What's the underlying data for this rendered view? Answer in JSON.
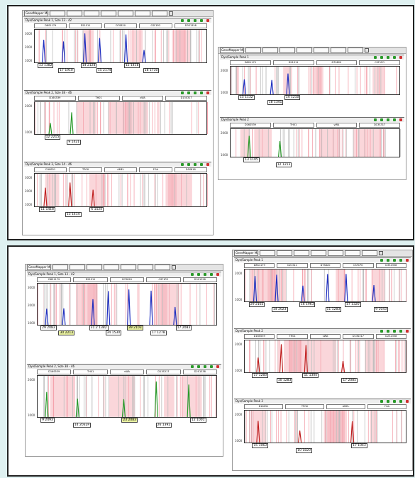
{
  "colors": {
    "background": "#dff1f1",
    "pink": "#f4a3ad",
    "gray_bin": "#bdbdbd",
    "blue": "#2030c0",
    "green": "#2a9a2a",
    "red": "#c02020",
    "dot_green": "#2a9a2a",
    "dot_red": "#d03030"
  },
  "panels": [
    {
      "name": "top-left-window",
      "title": "GeneMapper Marker Panel",
      "sections": [
        {
          "title": "Dye/Sample Peak 1, Size 13 - 42",
          "markers": [
            "D8S1179",
            "D21S11",
            "D7S820",
            "CSF1PO",
            "D3S1358"
          ],
          "ylabels": [
            "3000",
            "2000",
            "1000"
          ],
          "peak_color": "blue",
          "labels": [
            {
              "t": "13 1382",
              "p": 0.02
            },
            {
              "t": "17 1910",
              "p": 0.14
            },
            {
              "t": "14 2128",
              "p": 0.27
            },
            {
              "t": "15 2174",
              "p": 0.36
            },
            {
              "t": "12 1418",
              "p": 0.52
            },
            {
              "t": "18 1730",
              "p": 0.63
            }
          ]
        },
        {
          "title": "Dye/Sample Peak 2, Size 38 - 46",
          "markers": [
            "D16S539",
            "TH01",
            "vWA",
            "D13S317"
          ],
          "ylabels": [
            "2000",
            "1000"
          ],
          "peak_color": "green",
          "labels": [
            {
              "t": "12 2215",
              "p": 0.06
            },
            {
              "t": "9 1421",
              "p": 0.19
            }
          ]
        },
        {
          "title": "Dye/Sample Peak 3, Size 14 - 46",
          "markers": [
            "D18S51",
            "TPOX",
            "AMEL",
            "FGA",
            "D5S818"
          ],
          "ylabels": [
            "3000",
            "2000",
            "1000"
          ],
          "peak_color": "red",
          "labels": [
            {
              "t": "11 1418",
              "p": 0.03
            },
            {
              "t": "13 1414",
              "p": 0.18
            },
            {
              "t": "X 1524",
              "p": 0.32
            }
          ]
        }
      ]
    },
    {
      "name": "top-right-window",
      "title": "GeneMapper Marker Panel",
      "sections": [
        {
          "title": "Dye/Sample Peak 1",
          "markers": [
            "D8S1179",
            "D21S11",
            "D7S820",
            "CSF1PO"
          ],
          "ylabels": [
            "2000",
            "1000"
          ],
          "peak_color": "blue",
          "labels": [
            {
              "t": "15 1132",
              "p": 0.05
            },
            {
              "t": "18 1341",
              "p": 0.22
            },
            {
              "t": "14 1210",
              "p": 0.32
            }
          ]
        },
        {
          "title": "Dye/Sample Peak 2",
          "markers": [
            "D16S539",
            "TH01",
            "vWA",
            "D13S317"
          ],
          "ylabels": [
            "2000",
            "1000"
          ],
          "peak_color": "green",
          "labels": [
            {
              "t": "13 1105",
              "p": 0.08
            },
            {
              "t": "12 1213",
              "p": 0.27
            }
          ]
        }
      ]
    },
    {
      "name": "bottom-left-window",
      "title": "GeneMapper Marker Panel",
      "sections": [
        {
          "title": "Dye/Sample Peak 1, Size 13 - 42",
          "markers": [
            "D8S1179",
            "D21S11",
            "D7S820",
            "CSF1PO",
            "D3S1358"
          ],
          "ylabels": [
            "3000",
            "2000",
            "1000"
          ],
          "peak_color": "blue",
          "labels": [
            {
              "t": "29 2083",
              "p": 0.02
            },
            {
              "t": "30 2213",
              "y": 1,
              "p": 0.12
            },
            {
              "t": "31.2 1382",
              "p": 0.29
            },
            {
              "t": "34 1530",
              "p": 0.38
            },
            {
              "t": "39 2103",
              "y": 1,
              "p": 0.5
            },
            {
              "t": "17 1278",
              "p": 0.63
            },
            {
              "t": "17 2083",
              "p": 0.77
            }
          ]
        },
        {
          "title": "Dye/Sample Peak 2, Size 38 - 46",
          "markers": [
            "D16S539",
            "TH01",
            "vWA",
            "D13S317",
            "D2S1338"
          ],
          "ylabels": [
            "2000",
            "1000"
          ],
          "peak_color": "green",
          "labels": [
            {
              "t": "9 2493",
              "p": 0.02
            },
            {
              "t": "14 2032P",
              "p": 0.2
            },
            {
              "t": "23 2083",
              "y": 1,
              "p": 0.47
            },
            {
              "t": "26 1392",
              "p": 0.66
            },
            {
              "t": "12 1001",
              "p": 0.85
            }
          ]
        }
      ]
    },
    {
      "name": "bottom-right-window",
      "title": "GeneMapper Marker Panel",
      "sections": [
        {
          "title": "Dye/Sample Peak 1",
          "markers": [
            "D8S1179",
            "D21S11",
            "D7S820",
            "CSF1PO",
            "D3S1358"
          ],
          "ylabels": [
            "2000",
            "1000"
          ],
          "peak_color": "blue",
          "labels": [
            {
              "t": "29 2163",
              "p": 0.03
            },
            {
              "t": "14 2023",
              "p": 0.17
            },
            {
              "t": "16 1963",
              "p": 0.34
            },
            {
              "t": "11 1283",
              "p": 0.5
            },
            {
              "t": "17 1320",
              "p": 0.62
            },
            {
              "t": "9 1043",
              "p": 0.8
            }
          ]
        },
        {
          "title": "Dye/Sample Peak 2",
          "markers": [
            "D16S539",
            "TH01",
            "vWA",
            "D13S317",
            "D2S1338"
          ],
          "ylabels": [
            "2000",
            "1000"
          ],
          "peak_color": "red",
          "labels": [
            {
              "t": "17 1283",
              "p": 0.05
            },
            {
              "t": "10 1283",
              "p": 0.2
            },
            {
              "t": "11 1304",
              "p": 0.36
            },
            {
              "t": "17 2085",
              "p": 0.6
            }
          ]
        },
        {
          "title": "Dye/Sample Peak 3",
          "markers": [
            "D18S51",
            "TPOX",
            "AMEL",
            "FGA"
          ],
          "ylabels": [
            "2000",
            "1000"
          ],
          "peak_color": "red",
          "labels": [
            {
              "t": "15 1063",
              "p": 0.05
            },
            {
              "t": "10 1820",
              "p": 0.32
            },
            {
              "t": "17 1043",
              "p": 0.66
            }
          ]
        }
      ]
    }
  ]
}
